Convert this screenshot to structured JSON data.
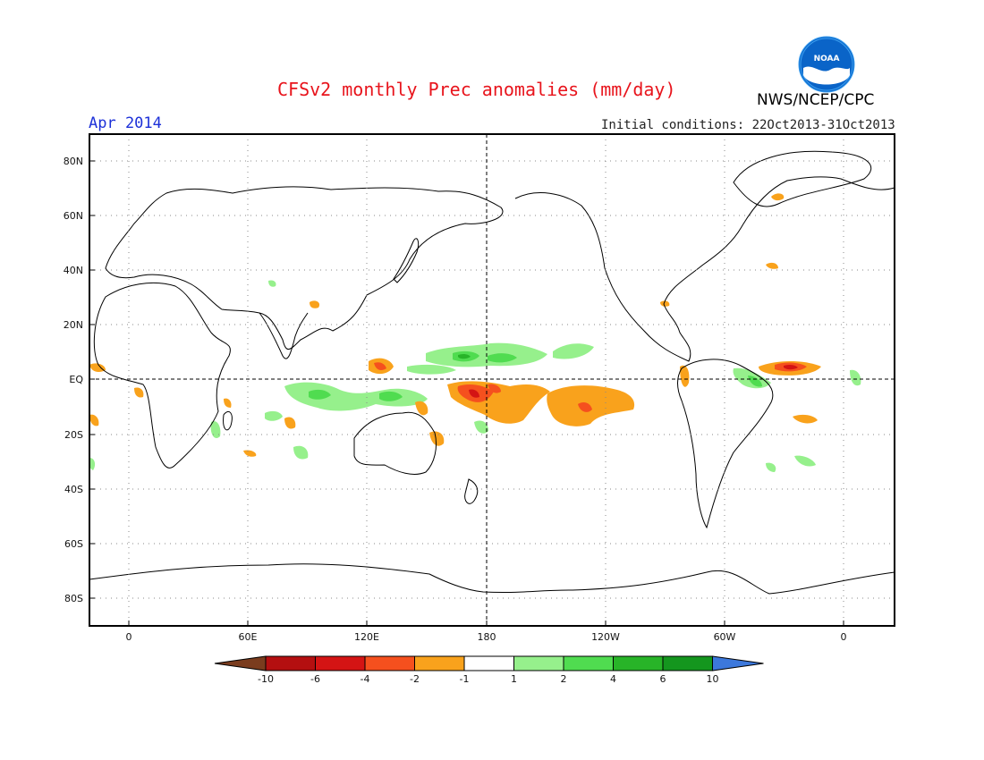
{
  "header": {
    "title": "CFSv2 monthly Prec anomalies (mm/day)",
    "month": "Apr 2014",
    "initial_conditions": "Initial conditions: 22Oct2013-31Oct2013",
    "agency": "NWS/NCEP/CPC",
    "logo_text": "NOAA"
  },
  "axes": {
    "lat_labels": [
      "80N",
      "60N",
      "40N",
      "20N",
      "EQ",
      "20S",
      "40S",
      "60S",
      "80S"
    ],
    "lon_labels": [
      "0",
      "60E",
      "120E",
      "180",
      "120W",
      "60W",
      "0"
    ]
  },
  "colorbar": {
    "labels": [
      "-10",
      "-6",
      "-4",
      "-2",
      "-1",
      "1",
      "2",
      "4",
      "6",
      "10"
    ],
    "colors": [
      "#7a3c1e",
      "#b40f10",
      "#d41414",
      "#f5501e",
      "#f9a21c",
      "#ffffff",
      "#96f08c",
      "#50dc50",
      "#28b428",
      "#14961e",
      "#3c78dc"
    ]
  },
  "colors": {
    "title": "#e8141c",
    "month": "#1c30d8",
    "neg_light": "#f9a21c",
    "neg_mid": "#f5501e",
    "neg_strong": "#d41414",
    "pos_light": "#96f08c",
    "pos_mid": "#50dc50",
    "pos_strong": "#28b428"
  }
}
